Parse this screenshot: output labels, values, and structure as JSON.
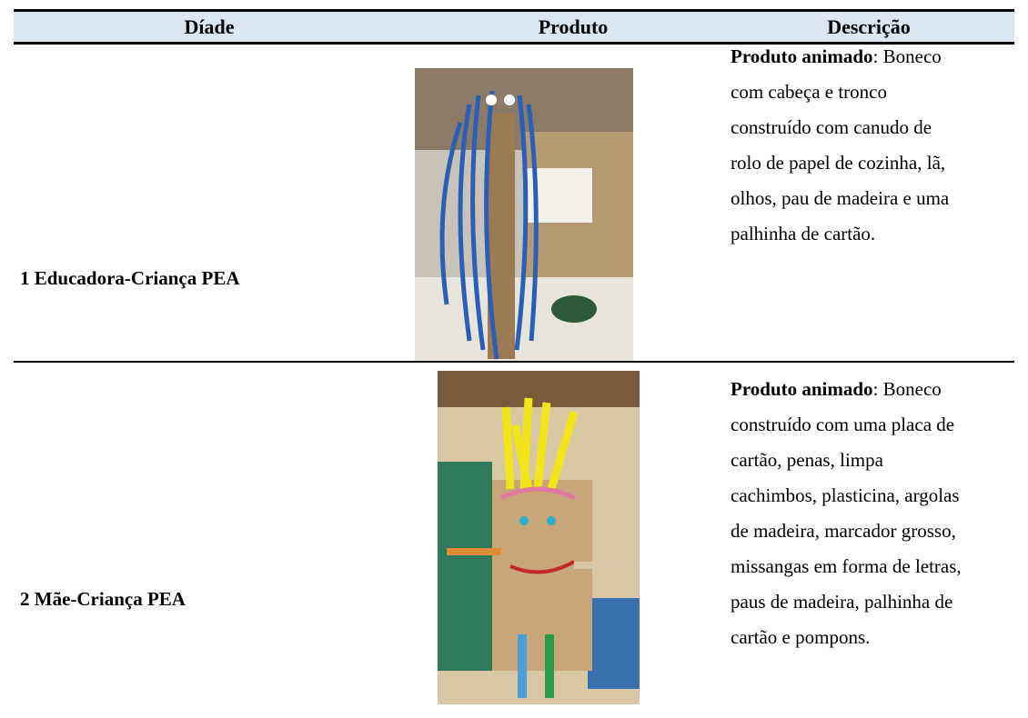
{
  "table": {
    "headers": [
      "Díade",
      "Produto",
      "Descrição"
    ],
    "rows": [
      {
        "dyad": "1 Educadora-Criança PEA",
        "description": {
          "bold": "Produto animado",
          "first": ": Boneco",
          "lines": [
            "com cabeça e tronco",
            "construído com canudo de",
            "rolo de papel de cozinha, lã,",
            "olhos, pau de madeira e uma",
            "palhinha de cartão."
          ]
        }
      },
      {
        "dyad": "2 Mãe-Criança PEA",
        "description": {
          "bold": "Produto animado",
          "first": ": Boneco",
          "lines": [
            "construído com uma placa de",
            "cartão, penas, limpa",
            "cachimbos, plasticina, argolas",
            "de madeira, marcador grosso,",
            "missangas em forma de letras,",
            "paus de madeira, palhinha de",
            "cartão e pompons."
          ]
        }
      }
    ]
  }
}
